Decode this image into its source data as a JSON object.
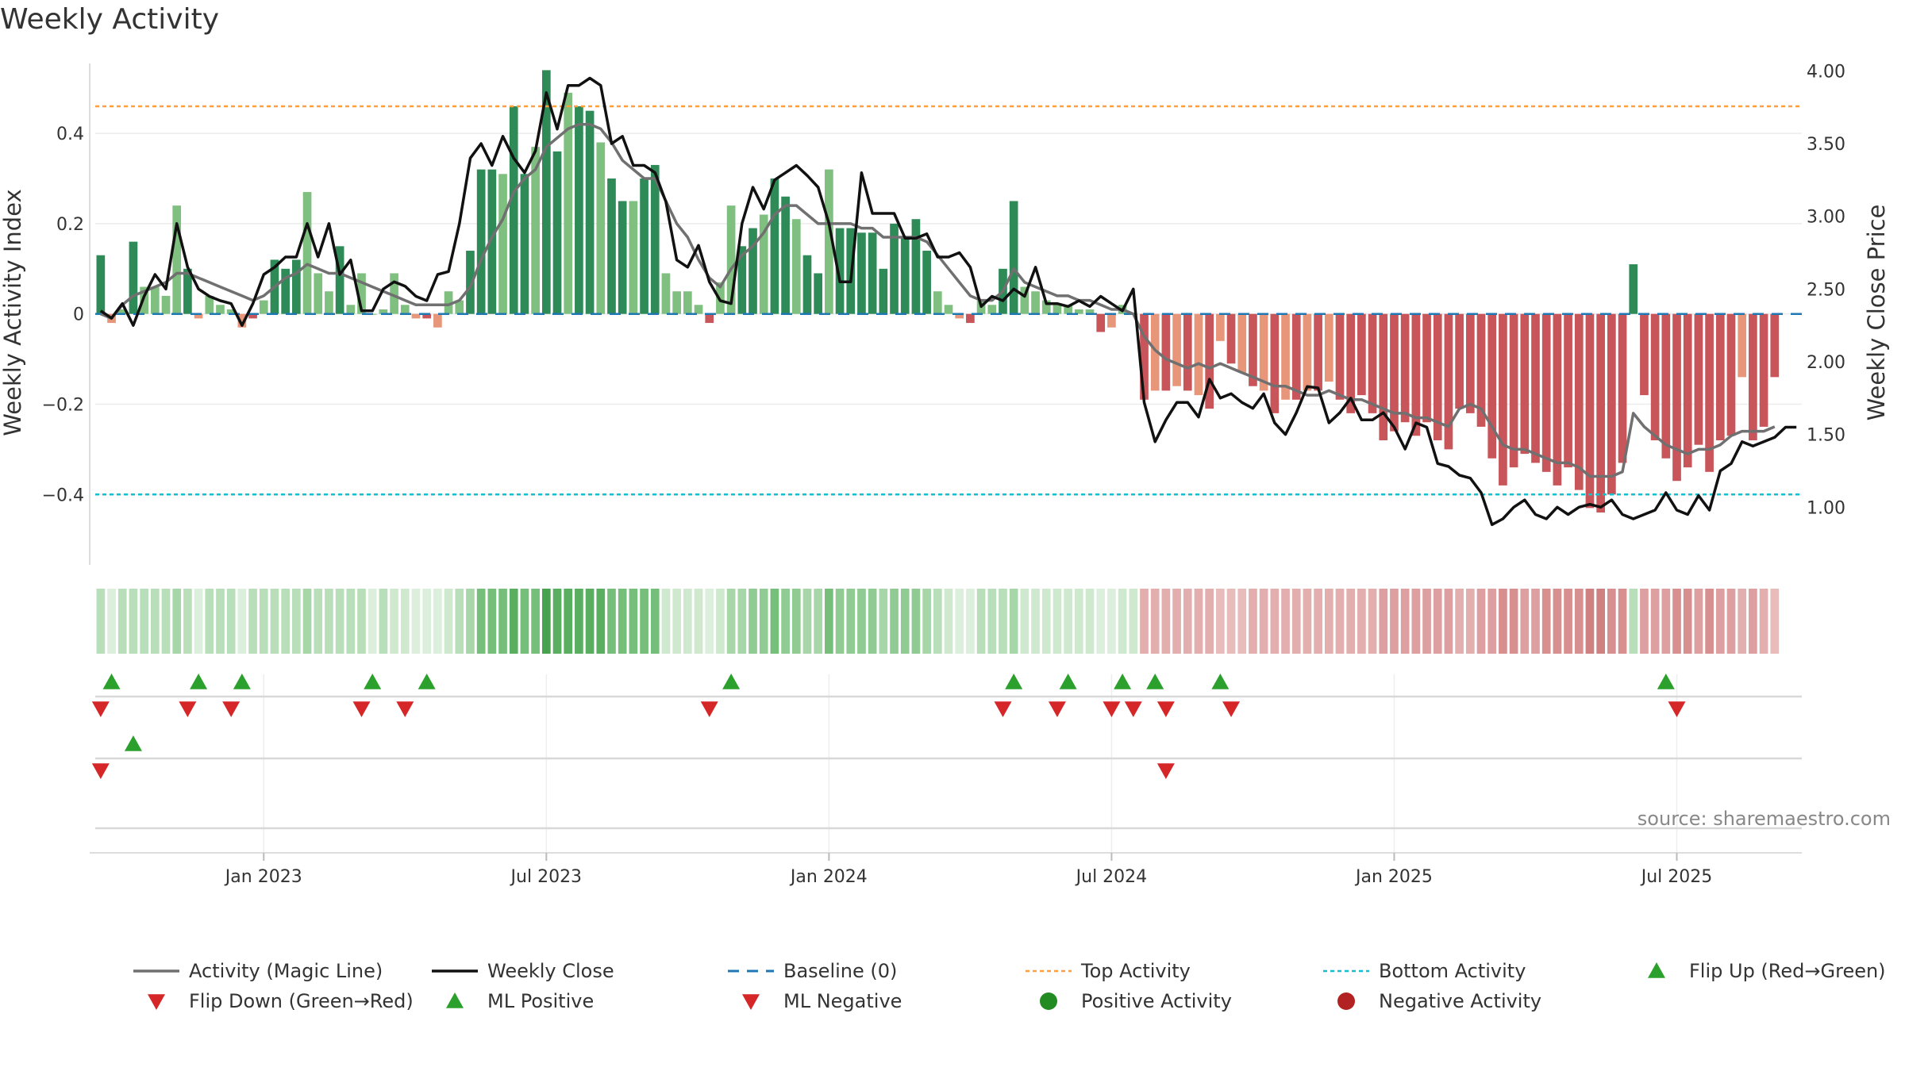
{
  "title": "Weekly Activity",
  "source": "source: sharemaestro.com",
  "colors": {
    "pos_strong": "#2e8b57",
    "pos_light": "#7fbf7f",
    "neg_strong": "#c8555a",
    "neg_light": "#e8967a",
    "magic_line": "#707070",
    "weekly_close": "#111111",
    "baseline": "#1f77b4",
    "top_activity": "#ff9f40",
    "bottom_activity": "#17becf",
    "flip_up": "#2ca02c",
    "flip_down": "#d62728",
    "positive_activity": "#228b22",
    "negative_activity": "#b22222"
  },
  "chart_data": {
    "type": "bar",
    "title": "Weekly Activity",
    "ylabel_left": "Weekly Activity Index",
    "ylabel_right": "Weekly Close Price",
    "ylim_left": [
      -0.57,
      0.59
    ],
    "ylim_right": [
      0.56,
      4.16
    ],
    "left_ticks": [
      {
        "value": 0.4,
        "label": "0.4"
      },
      {
        "value": 0.2,
        "label": "0.2"
      },
      {
        "value": 0,
        "label": "0"
      },
      {
        "value": -0.2,
        "label": "−0.2"
      },
      {
        "value": -0.4,
        "label": "−0.4"
      }
    ],
    "right_ticks": [
      {
        "value": 4.0,
        "label": "4.00"
      },
      {
        "value": 3.5,
        "label": "3.50"
      },
      {
        "value": 3.0,
        "label": "3.00"
      },
      {
        "value": 2.5,
        "label": "2.50"
      },
      {
        "value": 2.0,
        "label": "2.00"
      },
      {
        "value": 1.5,
        "label": "1.50"
      },
      {
        "value": 1.0,
        "label": "1.00"
      }
    ],
    "x_ticks": [
      "Jan 2023",
      "Jul 2023",
      "Jan 2024",
      "Jul 2024",
      "Jan 2025",
      "Jul 2025"
    ],
    "x_tick_weeks": [
      15,
      41,
      67,
      93,
      119,
      145
    ],
    "n_weeks": 157,
    "top_activity": 0.46,
    "bottom_activity": -0.4,
    "activity": [
      0.13,
      -0.02,
      0.01,
      0.16,
      0.06,
      0.06,
      0.04,
      0.24,
      0.1,
      -0.01,
      0.04,
      0.02,
      0.01,
      -0.03,
      -0.01,
      0.03,
      0.12,
      0.1,
      0.12,
      0.27,
      0.09,
      0.05,
      0.15,
      0.02,
      0.09,
      0.0,
      0.01,
      0.09,
      0.02,
      -0.01,
      -0.01,
      -0.03,
      0.05,
      0.03,
      0.14,
      0.32,
      0.32,
      0.31,
      0.46,
      0.31,
      0.37,
      0.54,
      0.36,
      0.49,
      0.46,
      0.45,
      0.38,
      0.3,
      0.25,
      0.25,
      0.3,
      0.33,
      0.09,
      0.05,
      0.05,
      0.02,
      -0.02,
      0.07,
      0.24,
      0.15,
      0.19,
      0.22,
      0.3,
      0.26,
      0.21,
      0.13,
      0.09,
      0.32,
      0.19,
      0.19,
      0.18,
      0.18,
      0.1,
      0.2,
      0.17,
      0.21,
      0.14,
      0.05,
      0.02,
      -0.01,
      -0.02,
      0.03,
      0.02,
      0.1,
      0.25,
      0.06,
      0.05,
      0.03,
      0.02,
      0.02,
      0.01,
      0.01,
      -0.04,
      -0.03,
      0.02,
      0.0,
      -0.19,
      -0.17,
      -0.17,
      -0.16,
      -0.17,
      -0.18,
      -0.21,
      -0.06,
      -0.11,
      -0.13,
      -0.16,
      -0.17,
      -0.22,
      -0.19,
      -0.19,
      -0.17,
      -0.17,
      -0.15,
      -0.19,
      -0.22,
      -0.18,
      -0.22,
      -0.28,
      -0.26,
      -0.24,
      -0.27,
      -0.24,
      -0.28,
      -0.3,
      -0.21,
      -0.22,
      -0.25,
      -0.32,
      -0.38,
      -0.34,
      -0.31,
      -0.33,
      -0.35,
      -0.38,
      -0.34,
      -0.39,
      -0.43,
      -0.44,
      -0.4,
      -0.33,
      0.11,
      -0.18,
      -0.28,
      -0.32,
      -0.37,
      -0.34,
      -0.29,
      -0.35,
      -0.28,
      -0.27,
      -0.14,
      -0.28,
      -0.25,
      -0.14
    ],
    "magic_line": [
      0.0,
      -0.01,
      0.02,
      0.04,
      0.05,
      0.06,
      0.07,
      0.09,
      0.09,
      0.08,
      0.07,
      0.06,
      0.05,
      0.04,
      0.03,
      0.04,
      0.06,
      0.08,
      0.09,
      0.11,
      0.1,
      0.09,
      0.09,
      0.08,
      0.07,
      0.06,
      0.05,
      0.04,
      0.03,
      0.02,
      0.02,
      0.02,
      0.02,
      0.03,
      0.06,
      0.12,
      0.17,
      0.21,
      0.27,
      0.3,
      0.32,
      0.37,
      0.39,
      0.41,
      0.42,
      0.42,
      0.41,
      0.38,
      0.34,
      0.32,
      0.3,
      0.3,
      0.25,
      0.2,
      0.17,
      0.12,
      0.08,
      0.06,
      0.1,
      0.13,
      0.15,
      0.18,
      0.22,
      0.24,
      0.24,
      0.22,
      0.2,
      0.2,
      0.2,
      0.2,
      0.19,
      0.19,
      0.17,
      0.17,
      0.17,
      0.17,
      0.16,
      0.13,
      0.1,
      0.07,
      0.04,
      0.03,
      0.03,
      0.05,
      0.1,
      0.07,
      0.06,
      0.05,
      0.04,
      0.04,
      0.03,
      0.03,
      0.02,
      0.01,
      0.01,
      0.0,
      -0.05,
      -0.08,
      -0.1,
      -0.11,
      -0.12,
      -0.11,
      -0.12,
      -0.11,
      -0.12,
      -0.13,
      -0.14,
      -0.15,
      -0.16,
      -0.16,
      -0.17,
      -0.18,
      -0.18,
      -0.17,
      -0.18,
      -0.19,
      -0.19,
      -0.2,
      -0.21,
      -0.22,
      -0.22,
      -0.23,
      -0.23,
      -0.24,
      -0.25,
      -0.21,
      -0.2,
      -0.21,
      -0.25,
      -0.29,
      -0.3,
      -0.3,
      -0.31,
      -0.32,
      -0.33,
      -0.33,
      -0.34,
      -0.36,
      -0.36,
      -0.36,
      -0.35,
      -0.22,
      -0.25,
      -0.27,
      -0.29,
      -0.3,
      -0.31,
      -0.3,
      -0.3,
      -0.29,
      -0.27,
      -0.26,
      -0.26,
      -0.26,
      -0.25
    ],
    "weekly_close": [
      2.35,
      2.3,
      2.4,
      2.25,
      2.45,
      2.6,
      2.5,
      2.95,
      2.65,
      2.5,
      2.45,
      2.42,
      2.4,
      2.25,
      2.4,
      2.6,
      2.65,
      2.72,
      2.72,
      2.95,
      2.72,
      2.95,
      2.6,
      2.7,
      2.35,
      2.35,
      2.5,
      2.55,
      2.52,
      2.45,
      2.42,
      2.6,
      2.62,
      2.95,
      3.4,
      3.5,
      3.35,
      3.55,
      3.4,
      3.3,
      3.45,
      3.85,
      3.6,
      3.9,
      3.9,
      3.95,
      3.9,
      3.5,
      3.55,
      3.35,
      3.35,
      3.3,
      3.1,
      2.7,
      2.65,
      2.8,
      2.55,
      2.42,
      2.4,
      2.95,
      3.2,
      3.05,
      3.25,
      3.3,
      3.35,
      3.28,
      3.2,
      2.95,
      2.55,
      2.55,
      3.3,
      3.02,
      3.02,
      3.02,
      2.85,
      2.85,
      2.88,
      2.72,
      2.72,
      2.75,
      2.65,
      2.38,
      2.45,
      2.42,
      2.5,
      2.45,
      2.65,
      2.4,
      2.4,
      2.38,
      2.42,
      2.38,
      2.45,
      2.4,
      2.35,
      2.5,
      1.72,
      1.45,
      1.6,
      1.72,
      1.72,
      1.62,
      1.88,
      1.75,
      1.78,
      1.72,
      1.68,
      1.78,
      1.58,
      1.5,
      1.65,
      1.83,
      1.82,
      1.58,
      1.65,
      1.75,
      1.6,
      1.6,
      1.65,
      1.55,
      1.4,
      1.58,
      1.55,
      1.3,
      1.28,
      1.22,
      1.2,
      1.1,
      0.88,
      0.92,
      1.0,
      1.05,
      0.95,
      0.92,
      1.0,
      0.95,
      1.0,
      1.02,
      1.0,
      1.05,
      0.95,
      0.92,
      0.95,
      0.98,
      1.1,
      0.98,
      0.95,
      1.08,
      0.98,
      1.25,
      1.3,
      1.45,
      1.42,
      1.45,
      1.48,
      1.55,
      1.55
    ],
    "heat_levels": [
      3,
      1,
      3,
      3,
      3,
      3,
      3,
      4,
      3,
      1,
      3,
      3,
      3,
      1,
      3,
      3,
      3,
      3,
      3,
      4,
      3,
      3,
      3,
      3,
      3,
      1,
      3,
      2,
      2,
      1,
      1,
      1,
      2,
      3,
      4,
      6,
      6,
      6,
      7,
      6,
      6,
      8,
      7,
      7,
      7,
      7,
      7,
      6,
      6,
      6,
      6,
      6,
      2,
      2,
      2,
      2,
      1,
      2,
      4,
      4,
      5,
      5,
      6,
      5,
      5,
      4,
      4,
      6,
      5,
      5,
      5,
      5,
      4,
      5,
      5,
      5,
      4,
      3,
      2,
      1,
      1,
      3,
      3,
      3,
      4,
      2,
      2,
      2,
      2,
      2,
      2,
      2,
      1,
      1,
      2,
      2,
      -3,
      -3,
      -3,
      -3,
      -3,
      -3,
      -3,
      -2,
      -2,
      -2,
      -3,
      -3,
      -3,
      -3,
      -3,
      -3,
      -3,
      -3,
      -3,
      -3,
      -3,
      -3,
      -4,
      -4,
      -4,
      -4,
      -4,
      -4,
      -4,
      -3,
      -3,
      -4,
      -4,
      -5,
      -5,
      -4,
      -4,
      -5,
      -5,
      -5,
      -5,
      -6,
      -6,
      -5,
      -5,
      3,
      -4,
      -4,
      -4,
      -5,
      -5,
      -4,
      -5,
      -4,
      -4,
      -3,
      -4,
      -3,
      -2
    ],
    "flip_up_weeks": [
      1,
      9,
      13,
      25,
      30,
      58,
      84,
      89,
      94,
      97,
      103,
      144
    ],
    "flip_down_weeks": [
      0,
      8,
      12,
      24,
      28,
      56,
      83,
      88,
      93,
      95,
      98,
      104,
      145
    ],
    "ml_positive_weeks": [
      3
    ],
    "ml_negative_weeks": [
      0,
      98
    ],
    "legend": [
      {
        "label": "Activity (Magic Line)",
        "symbol": "line",
        "color_key": "magic_line"
      },
      {
        "label": "Weekly Close",
        "symbol": "line",
        "color_key": "weekly_close"
      },
      {
        "label": "Baseline (0)",
        "symbol": "dash",
        "color_key": "baseline"
      },
      {
        "label": "Top Activity",
        "symbol": "dot",
        "color_key": "top_activity"
      },
      {
        "label": "Bottom Activity",
        "symbol": "dot",
        "color_key": "bottom_activity"
      },
      {
        "label": "Flip Up (Red→Green)",
        "symbol": "tri-up",
        "color_key": "flip_up"
      },
      {
        "label": "Flip Down (Green→Red)",
        "symbol": "tri-down",
        "color_key": "flip_down"
      },
      {
        "label": "ML Positive",
        "symbol": "tri-up",
        "color_key": "flip_up"
      },
      {
        "label": "ML Negative",
        "symbol": "tri-down",
        "color_key": "flip_down"
      },
      {
        "label": "Positive Activity",
        "symbol": "circle",
        "color_key": "positive_activity"
      },
      {
        "label": "Negative Activity",
        "symbol": "circle",
        "color_key": "negative_activity"
      }
    ]
  }
}
